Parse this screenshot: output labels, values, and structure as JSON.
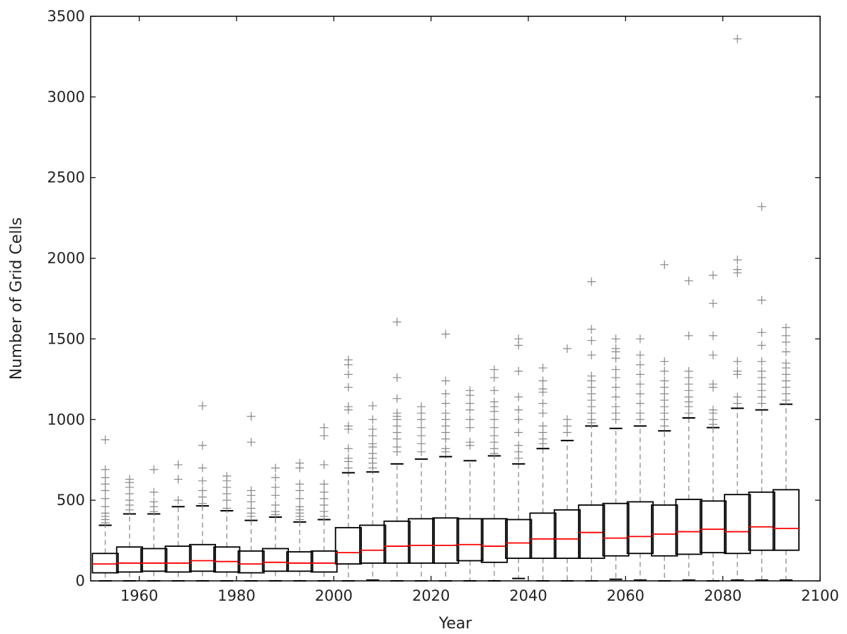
{
  "chart_data": {
    "type": "box",
    "xlabel": "Year",
    "ylabel": "Number of Grid Cells",
    "xlim": [
      1950,
      2100
    ],
    "ylim": [
      0,
      3500
    ],
    "xticks": [
      1960,
      1980,
      2000,
      2020,
      2040,
      2060,
      2080,
      2100
    ],
    "yticks": [
      0,
      500,
      1000,
      1500,
      2000,
      2500,
      3000,
      3500
    ],
    "grid": false,
    "colors": {
      "box": "#000000",
      "median": "#ff0000",
      "whisker": "#999999",
      "flier": "#888888"
    },
    "boxes": [
      {
        "x": 1953,
        "q1": 50,
        "median": 105,
        "q3": 170,
        "whislo": 0,
        "whishi": 345,
        "fliers": [
          360,
          380,
          400,
          420,
          460,
          510,
          560,
          600,
          640,
          690,
          875
        ]
      },
      {
        "x": 1958,
        "q1": 55,
        "median": 110,
        "q3": 210,
        "whislo": 0,
        "whishi": 415,
        "fliers": [
          440,
          470,
          500,
          540,
          580,
          610,
          630
        ]
      },
      {
        "x": 1963,
        "q1": 60,
        "median": 110,
        "q3": 200,
        "whislo": 0,
        "whishi": 415,
        "fliers": [
          430,
          460,
          490,
          550,
          690
        ]
      },
      {
        "x": 1968,
        "q1": 55,
        "median": 110,
        "q3": 215,
        "whislo": 0,
        "whishi": 460,
        "fliers": [
          500,
          630,
          720
        ]
      },
      {
        "x": 1973,
        "q1": 60,
        "median": 125,
        "q3": 225,
        "whislo": 0,
        "whishi": 465,
        "fliers": [
          480,
          520,
          560,
          620,
          700,
          840,
          1085
        ]
      },
      {
        "x": 1978,
        "q1": 55,
        "median": 120,
        "q3": 210,
        "whislo": 0,
        "whishi": 435,
        "fliers": [
          450,
          500,
          540,
          580,
          620,
          650
        ]
      },
      {
        "x": 1983,
        "q1": 50,
        "median": 105,
        "q3": 185,
        "whislo": 0,
        "whishi": 375,
        "fliers": [
          400,
          420,
          450,
          490,
          530,
          560,
          860,
          1020
        ]
      },
      {
        "x": 1988,
        "q1": 60,
        "median": 115,
        "q3": 200,
        "whislo": 0,
        "whishi": 395,
        "fliers": [
          410,
          430,
          470,
          530,
          580,
          640,
          700
        ]
      },
      {
        "x": 1993,
        "q1": 60,
        "median": 110,
        "q3": 180,
        "whislo": 0,
        "whishi": 365,
        "fliers": [
          380,
          400,
          420,
          440,
          460,
          510,
          560,
          600,
          700,
          730
        ]
      },
      {
        "x": 1998,
        "q1": 55,
        "median": 110,
        "q3": 185,
        "whislo": 0,
        "whishi": 380,
        "fliers": [
          400,
          430,
          470,
          510,
          550,
          600,
          720,
          900,
          950
        ]
      },
      {
        "x": 2003,
        "q1": 105,
        "median": 175,
        "q3": 330,
        "whislo": 0,
        "whishi": 670,
        "fliers": [
          700,
          740,
          760,
          820,
          940,
          960,
          1060,
          1080,
          1200,
          1280,
          1340,
          1370
        ]
      },
      {
        "x": 2008,
        "q1": 110,
        "median": 190,
        "q3": 345,
        "whislo": 5,
        "whishi": 675,
        "fliers": [
          700,
          730,
          760,
          790,
          830,
          850,
          900,
          940,
          1000,
          1085
        ]
      },
      {
        "x": 2013,
        "q1": 110,
        "median": 215,
        "q3": 370,
        "whislo": 0,
        "whishi": 725,
        "fliers": [
          800,
          830,
          880,
          920,
          960,
          1000,
          1020,
          1040,
          1130,
          1260,
          1605
        ]
      },
      {
        "x": 2018,
        "q1": 110,
        "median": 220,
        "q3": 385,
        "whislo": 0,
        "whishi": 755,
        "fliers": [
          800,
          850,
          900,
          950,
          1000,
          1040,
          1080
        ]
      },
      {
        "x": 2023,
        "q1": 110,
        "median": 220,
        "q3": 390,
        "whislo": 0,
        "whishi": 770,
        "fliers": [
          800,
          820,
          880,
          920,
          960,
          1000,
          1040,
          1100,
          1160,
          1240,
          1530
        ]
      },
      {
        "x": 2028,
        "q1": 125,
        "median": 225,
        "q3": 385,
        "whislo": 0,
        "whishi": 745,
        "fliers": [
          840,
          860,
          950,
          1000,
          1060,
          1100,
          1150,
          1180
        ]
      },
      {
        "x": 2033,
        "q1": 115,
        "median": 215,
        "q3": 385,
        "whislo": 0,
        "whishi": 775,
        "fliers": [
          790,
          820,
          860,
          900,
          950,
          1000,
          1050,
          1080,
          1110,
          1180,
          1260,
          1310
        ]
      },
      {
        "x": 2038,
        "q1": 140,
        "median": 235,
        "q3": 380,
        "whislo": 15,
        "whishi": 725,
        "fliers": [
          760,
          800,
          840,
          920,
          1000,
          1060,
          1140,
          1300,
          1460,
          1500
        ]
      },
      {
        "x": 2043,
        "q1": 140,
        "median": 260,
        "q3": 420,
        "whislo": 0,
        "whishi": 820,
        "fliers": [
          850,
          880,
          920,
          960,
          1040,
          1100,
          1170,
          1190,
          1240,
          1320
        ]
      },
      {
        "x": 2048,
        "q1": 140,
        "median": 260,
        "q3": 440,
        "whislo": 0,
        "whishi": 870,
        "fliers": [
          920,
          960,
          1000,
          1440
        ]
      },
      {
        "x": 2053,
        "q1": 140,
        "median": 300,
        "q3": 470,
        "whislo": 0,
        "whishi": 960,
        "fliers": [
          980,
          1000,
          1040,
          1080,
          1120,
          1160,
          1200,
          1240,
          1270,
          1400,
          1490,
          1560,
          1855
        ]
      },
      {
        "x": 2058,
        "q1": 155,
        "median": 265,
        "q3": 480,
        "whislo": 10,
        "whishi": 945,
        "fliers": [
          1000,
          1040,
          1080,
          1140,
          1200,
          1260,
          1310,
          1380,
          1420,
          1440,
          1500
        ]
      },
      {
        "x": 2063,
        "q1": 170,
        "median": 275,
        "q3": 490,
        "whislo": 5,
        "whishi": 960,
        "fliers": [
          1000,
          1040,
          1100,
          1160,
          1220,
          1280,
          1340,
          1400,
          1500
        ]
      },
      {
        "x": 2068,
        "q1": 155,
        "median": 290,
        "q3": 470,
        "whislo": 0,
        "whishi": 930,
        "fliers": [
          960,
          1000,
          1040,
          1080,
          1120,
          1160,
          1200,
          1240,
          1300,
          1360,
          1960
        ]
      },
      {
        "x": 2073,
        "q1": 165,
        "median": 305,
        "q3": 505,
        "whislo": 5,
        "whishi": 1010,
        "fliers": [
          1040,
          1080,
          1110,
          1140,
          1180,
          1220,
          1260,
          1300,
          1520,
          1860
        ]
      },
      {
        "x": 2078,
        "q1": 175,
        "median": 320,
        "q3": 495,
        "whislo": 0,
        "whishi": 950,
        "fliers": [
          970,
          1000,
          1040,
          1060,
          1200,
          1220,
          1400,
          1520,
          1720,
          1895
        ]
      },
      {
        "x": 2083,
        "q1": 170,
        "median": 305,
        "q3": 535,
        "whislo": 5,
        "whishi": 1070,
        "fliers": [
          1100,
          1140,
          1280,
          1300,
          1360,
          1910,
          1930,
          1990,
          3360
        ]
      },
      {
        "x": 2088,
        "q1": 190,
        "median": 335,
        "q3": 550,
        "whislo": 5,
        "whishi": 1060,
        "fliers": [
          1100,
          1140,
          1180,
          1220,
          1260,
          1300,
          1360,
          1460,
          1540,
          1740,
          2320
        ]
      },
      {
        "x": 2093,
        "q1": 190,
        "median": 325,
        "q3": 565,
        "whislo": 5,
        "whishi": 1095,
        "fliers": [
          1120,
          1160,
          1200,
          1240,
          1280,
          1320,
          1350,
          1420,
          1480,
          1520,
          1570
        ]
      }
    ]
  }
}
